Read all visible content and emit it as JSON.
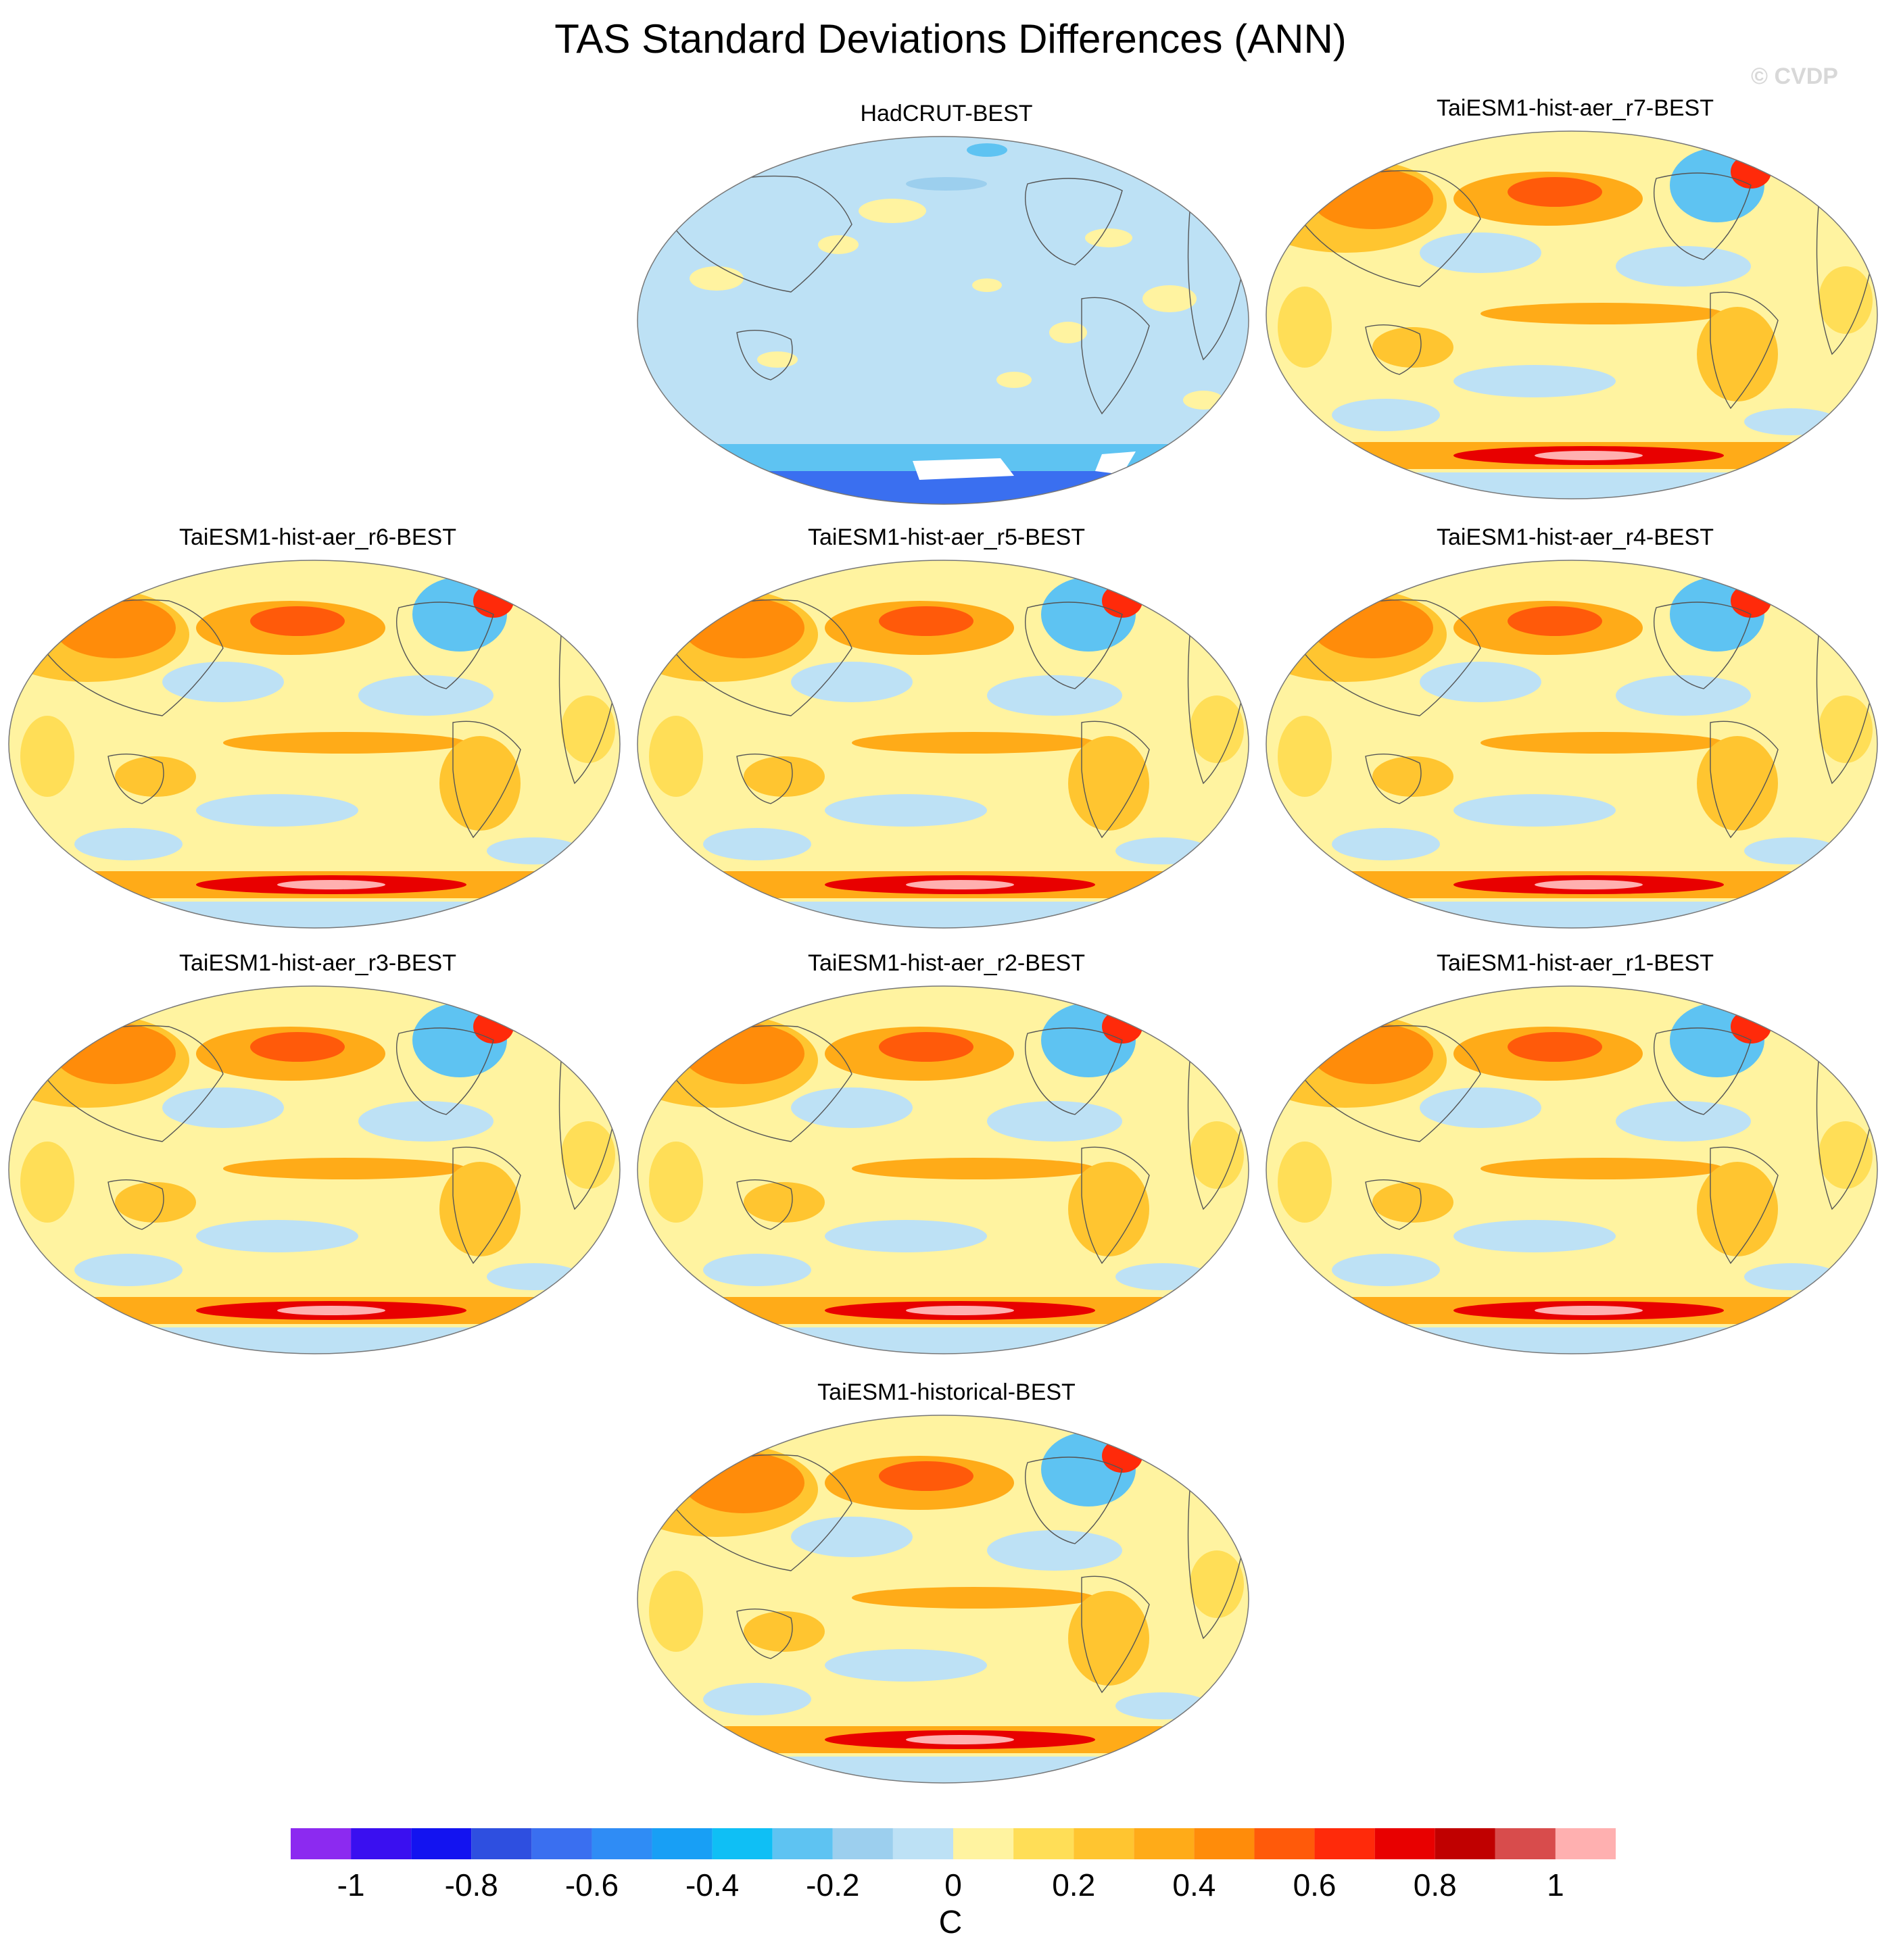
{
  "title": "TAS Standard Deviations Differences (ANN)",
  "watermark": "© CVDP",
  "chart_data": {
    "type": "heatmap",
    "title": "TAS Standard Deviations Differences (ANN)",
    "projection": "Robinson (global, Pacific-centered)",
    "variable": "surface air temperature standard deviation difference",
    "panels": [
      {
        "name": "HadCRUT-BEST",
        "pattern": "obs"
      },
      {
        "name": "TaiESM1-hist-aer_r7-BEST",
        "pattern": "model"
      },
      {
        "name": "TaiESM1-hist-aer_r6-BEST",
        "pattern": "model"
      },
      {
        "name": "TaiESM1-hist-aer_r5-BEST",
        "pattern": "model"
      },
      {
        "name": "TaiESM1-hist-aer_r4-BEST",
        "pattern": "model"
      },
      {
        "name": "TaiESM1-hist-aer_r3-BEST",
        "pattern": "model"
      },
      {
        "name": "TaiESM1-hist-aer_r2-BEST",
        "pattern": "model"
      },
      {
        "name": "TaiESM1-hist-aer_r1-BEST",
        "pattern": "model"
      },
      {
        "name": "TaiESM1-historical-BEST",
        "pattern": "model"
      }
    ],
    "colorbar": {
      "unit": "C",
      "levels": [
        -1.1,
        -1.0,
        -0.9,
        -0.8,
        -0.7,
        -0.6,
        -0.5,
        -0.4,
        -0.3,
        -0.2,
        -0.1,
        0,
        0.1,
        0.2,
        0.3,
        0.4,
        0.5,
        0.6,
        0.7,
        0.8,
        0.9,
        1.0,
        1.1
      ],
      "colors": [
        "#8c2af0",
        "#3a0ff0",
        "#1313f0",
        "#2e4fe0",
        "#3a6ff0",
        "#2f8cf5",
        "#189ff5",
        "#0fbff5",
        "#5ec3f2",
        "#9ccfee",
        "#bde1f5",
        "#fff3a0",
        "#ffde57",
        "#ffc530",
        "#ffab18",
        "#ff8c0a",
        "#ff5a0a",
        "#ff2a0a",
        "#e80000",
        "#c00000",
        "#d84c4c",
        "#ffb0b0"
      ],
      "tick_labels": [
        "-1",
        "-0.8",
        "-0.6",
        "-0.4",
        "-0.2",
        "0",
        "0.2",
        "0.4",
        "0.6",
        "0.8",
        "1"
      ],
      "tick_values": [
        -1,
        -0.8,
        -0.6,
        -0.4,
        -0.2,
        0,
        0.2,
        0.4,
        0.6,
        0.8,
        1
      ]
    }
  }
}
